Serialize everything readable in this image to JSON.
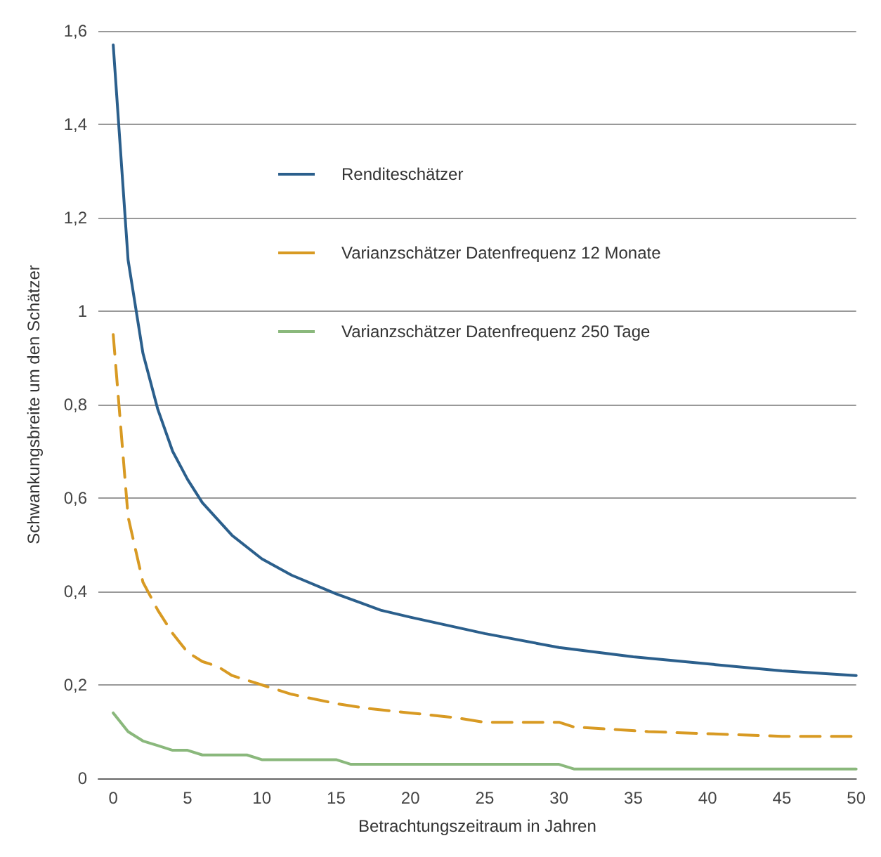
{
  "chart_data": {
    "type": "line",
    "xlabel": "Betrachtungszeitraum in Jahren",
    "ylabel": "Schwankungsbreite um den Schätzer",
    "xlim": [
      -1,
      50
    ],
    "xticks": [
      0,
      5,
      10,
      15,
      20,
      25,
      30,
      35,
      40,
      45,
      50
    ],
    "ylim": [
      0,
      1.6
    ],
    "yticks": [
      {
        "value": 0,
        "label": "0"
      },
      {
        "value": 0.2,
        "label": "0,2"
      },
      {
        "value": 0.4,
        "label": "0,4"
      },
      {
        "value": 0.6,
        "label": "0,6"
      },
      {
        "value": 0.8,
        "label": "0,8"
      },
      {
        "value": 1,
        "label": "1"
      },
      {
        "value": 1.2,
        "label": "1,2"
      },
      {
        "value": 1.4,
        "label": "1,4"
      },
      {
        "value": 1.6,
        "label": "1,6"
      }
    ],
    "grid": "y",
    "legend": "top",
    "marker": "none",
    "series": [
      {
        "name": "Renditeschätzer",
        "color": "#2b5f8c",
        "line_style": "solid",
        "x": [
          0,
          1,
          2,
          3,
          4,
          5,
          6,
          7,
          8,
          10,
          12,
          15,
          18,
          20,
          25,
          30,
          35,
          40,
          45,
          50
        ],
        "values": [
          1.57,
          1.11,
          0.91,
          0.79,
          0.7,
          0.64,
          0.59,
          0.555,
          0.52,
          0.47,
          0.435,
          0.395,
          0.36,
          0.345,
          0.31,
          0.28,
          0.26,
          0.245,
          0.23,
          0.22
        ]
      },
      {
        "name": "Varianzschätzer Datenfrequenz 12 Monate",
        "color": "#d89a23",
        "line_style": "dashed",
        "x": [
          0,
          1,
          2,
          3,
          4,
          5,
          6,
          7,
          8,
          9,
          10,
          12,
          15,
          17,
          20,
          23,
          25,
          30,
          31,
          36,
          45,
          50
        ],
        "values": [
          0.95,
          0.56,
          0.42,
          0.36,
          0.31,
          0.27,
          0.25,
          0.24,
          0.22,
          0.21,
          0.2,
          0.18,
          0.16,
          0.15,
          0.14,
          0.13,
          0.12,
          0.12,
          0.11,
          0.1,
          0.09,
          0.09
        ]
      },
      {
        "name": "Varianzschätzer Datenfrequenz 250 Tage",
        "color": "#8ab87c",
        "line_style": "solid",
        "x": [
          0,
          1,
          2,
          3,
          4,
          5,
          6,
          9,
          10,
          15,
          16,
          30,
          31,
          50
        ],
        "values": [
          0.14,
          0.1,
          0.08,
          0.07,
          0.06,
          0.06,
          0.05,
          0.05,
          0.04,
          0.04,
          0.03,
          0.03,
          0.02,
          0.02
        ]
      }
    ]
  }
}
